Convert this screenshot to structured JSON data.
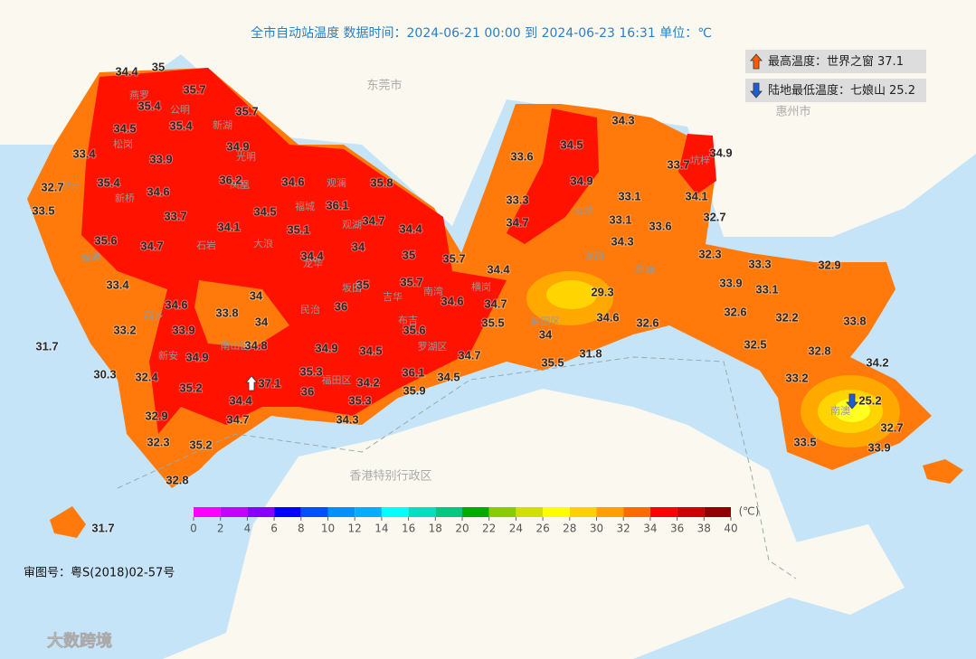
{
  "title": "全市自动站温度  数据时间：2024-06-21 00:00 到 2024-06-23 16:31  单位：℃",
  "summary": {
    "max_label": "最高温度：世界之窗",
    "max_value": 37.1,
    "min_label": "陆地最低温度：七娘山",
    "min_value": 25.2
  },
  "regions": [
    "东莞市",
    "惠州市",
    "香港特别行政区"
  ],
  "places": [
    "燕罗",
    "公明",
    "新湖",
    "松岗",
    "光明",
    "沙井",
    "凤凰",
    "新桥",
    "福城",
    "观澜",
    "石岩",
    "福海",
    "观湖",
    "龙华",
    "大浪",
    "民治",
    "坂田",
    "吉华",
    "南湾",
    "西乡",
    "新安",
    "南山区",
    "福田区",
    "布吉",
    "罗湖区",
    "横岗",
    "盐田区",
    "龙岗",
    "宝龙",
    "坪地",
    "坑梓",
    "南澳"
  ],
  "stations": [
    34.4,
    35,
    35.7,
    35.4,
    35.7,
    34.5,
    35.4,
    34.9,
    33.4,
    33.9,
    32.7,
    35.4,
    34.6,
    36.2,
    34.6,
    36.1,
    35.8,
    33.5,
    33.7,
    34.1,
    34.5,
    35.1,
    34.7,
    34.4,
    35.6,
    34.7,
    34,
    34.4,
    35,
    35.7,
    34.4,
    33.4,
    34,
    35,
    35.7,
    34.6,
    34.6,
    33.8,
    34,
    36,
    34.7,
    33.2,
    33.9,
    35.5,
    35.6,
    31.7,
    34.8,
    34.9,
    34.9,
    34.5,
    34.7,
    34,
    30.3,
    32.4,
    35.3,
    36.1,
    34.5,
    34.2,
    35.2,
    37.1,
    34.4,
    36,
    35.9,
    35.3,
    34.3,
    32.9,
    34.7,
    32.3,
    35.2,
    32.8,
    31.7,
    33.6,
    34.5,
    34.3,
    33.7,
    34.9,
    34.9,
    33.3,
    33.1,
    34.1,
    34.7,
    33.1,
    33.6,
    32.7,
    34.3,
    32.3,
    33.3,
    32.9,
    33.9,
    33.1,
    29.3,
    32.6,
    32.2,
    34.6,
    32.6,
    33.8,
    32.5,
    31.8,
    35.5,
    32.8,
    34.2,
    33.2,
    25.2,
    32.7,
    33.5,
    33.9
  ],
  "legend": {
    "ticks": [
      0,
      2,
      4,
      6,
      8,
      10,
      12,
      14,
      16,
      18,
      20,
      22,
      24,
      26,
      28,
      30,
      32,
      34,
      36,
      38,
      40
    ],
    "colors": [
      "#ff00ff",
      "#c800ff",
      "#8800ff",
      "#0000ff",
      "#0050ff",
      "#0090ff",
      "#00b0ff",
      "#00ffff",
      "#00e0c0",
      "#00c880",
      "#00aa00",
      "#88cc00",
      "#d0e000",
      "#ffff00",
      "#ffd000",
      "#ffa000",
      "#ff6a00",
      "#ff0000",
      "#d00000",
      "#900000"
    ],
    "unit": "(℃)"
  },
  "approval": "审图号：粤S(2018)02-57号",
  "watermark": "大数跨境"
}
